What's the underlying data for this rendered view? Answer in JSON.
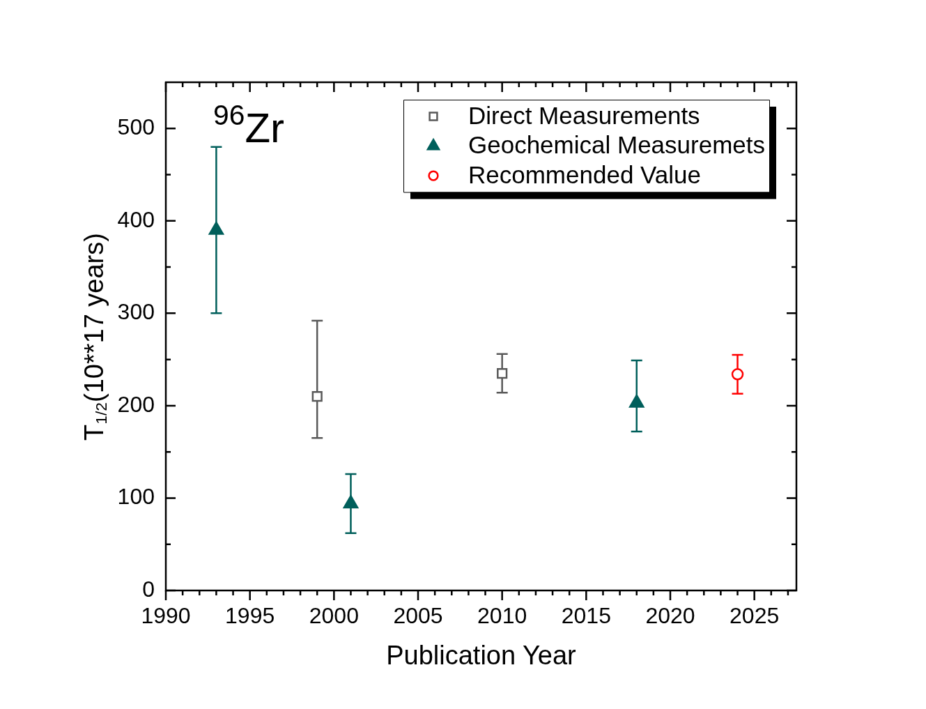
{
  "chart_data": {
    "type": "scatter",
    "xlabel": "Publication Year",
    "ylabel": "T$_{1/2}$(10**17 years)",
    "annotations": [
      "$^{96}$Zr"
    ],
    "xlim": [
      1990,
      2027.5
    ],
    "xticks": [
      1990,
      {
        "value": 1991,
        "label": null
      },
      {
        "value": 1992,
        "label": null
      },
      {
        "value": 1993,
        "label": null
      },
      {
        "value": 1994,
        "label": null
      },
      1995,
      {
        "value": 1996,
        "label": null
      },
      {
        "value": 1997,
        "label": null
      },
      {
        "value": 1998,
        "label": null
      },
      {
        "value": 1999,
        "label": null
      },
      2000,
      {
        "value": 2001,
        "label": null
      },
      {
        "value": 2002,
        "label": null
      },
      {
        "value": 2003,
        "label": null
      },
      {
        "value": 2004,
        "label": null
      },
      2005,
      {
        "value": 2006,
        "label": null
      },
      {
        "value": 2007,
        "label": null
      },
      {
        "value": 2008,
        "label": null
      },
      {
        "value": 2009,
        "label": null
      },
      2010,
      {
        "value": 2011,
        "label": null
      },
      {
        "value": 2012,
        "label": null
      },
      {
        "value": 2013,
        "label": null
      },
      {
        "value": 2014,
        "label": null
      },
      2015,
      {
        "value": 2016,
        "label": null
      },
      {
        "value": 2017,
        "label": null
      },
      {
        "value": 2018,
        "label": null
      },
      {
        "value": 2019,
        "label": null
      },
      2020,
      {
        "value": 2021,
        "label": null
      },
      {
        "value": 2022,
        "label": null
      },
      {
        "value": 2023,
        "label": null
      },
      {
        "value": 2024,
        "label": null
      },
      2025,
      {
        "value": 2026,
        "label": null
      },
      {
        "value": 2027,
        "label": null
      }
    ],
    "ylim": [
      0,
      550
    ],
    "yticks": [
      0,
      {
        "value": 50,
        "label": null
      },
      100,
      {
        "value": 150,
        "label": null
      },
      200,
      {
        "value": 250,
        "label": null
      },
      300,
      {
        "value": 350,
        "label": null
      },
      400,
      {
        "value": 450,
        "label": null
      },
      500
    ],
    "grid": false,
    "legend": "top right",
    "series": [
      {
        "name": "Direct Measurements",
        "color": "#595959",
        "marker": "square",
        "x": [
          1999,
          2010
        ],
        "values": [
          210,
          235
        ],
        "errors": [
          [
            165,
            292
          ],
          [
            214,
            256
          ]
        ]
      },
      {
        "name": "Geochemical Measuremets",
        "color": "#005f5b",
        "marker": "triangle",
        "x": [
          1993,
          2001,
          2018
        ],
        "values": [
          390,
          94,
          203
        ],
        "errors": [
          [
            300,
            480
          ],
          [
            62,
            126
          ],
          [
            172,
            249
          ]
        ]
      },
      {
        "name": "Recommended Value",
        "color": "#ff0000",
        "marker": "circle",
        "x": [
          2024
        ],
        "values": [
          234
        ],
        "errors": [
          [
            213,
            255
          ]
        ]
      }
    ]
  }
}
